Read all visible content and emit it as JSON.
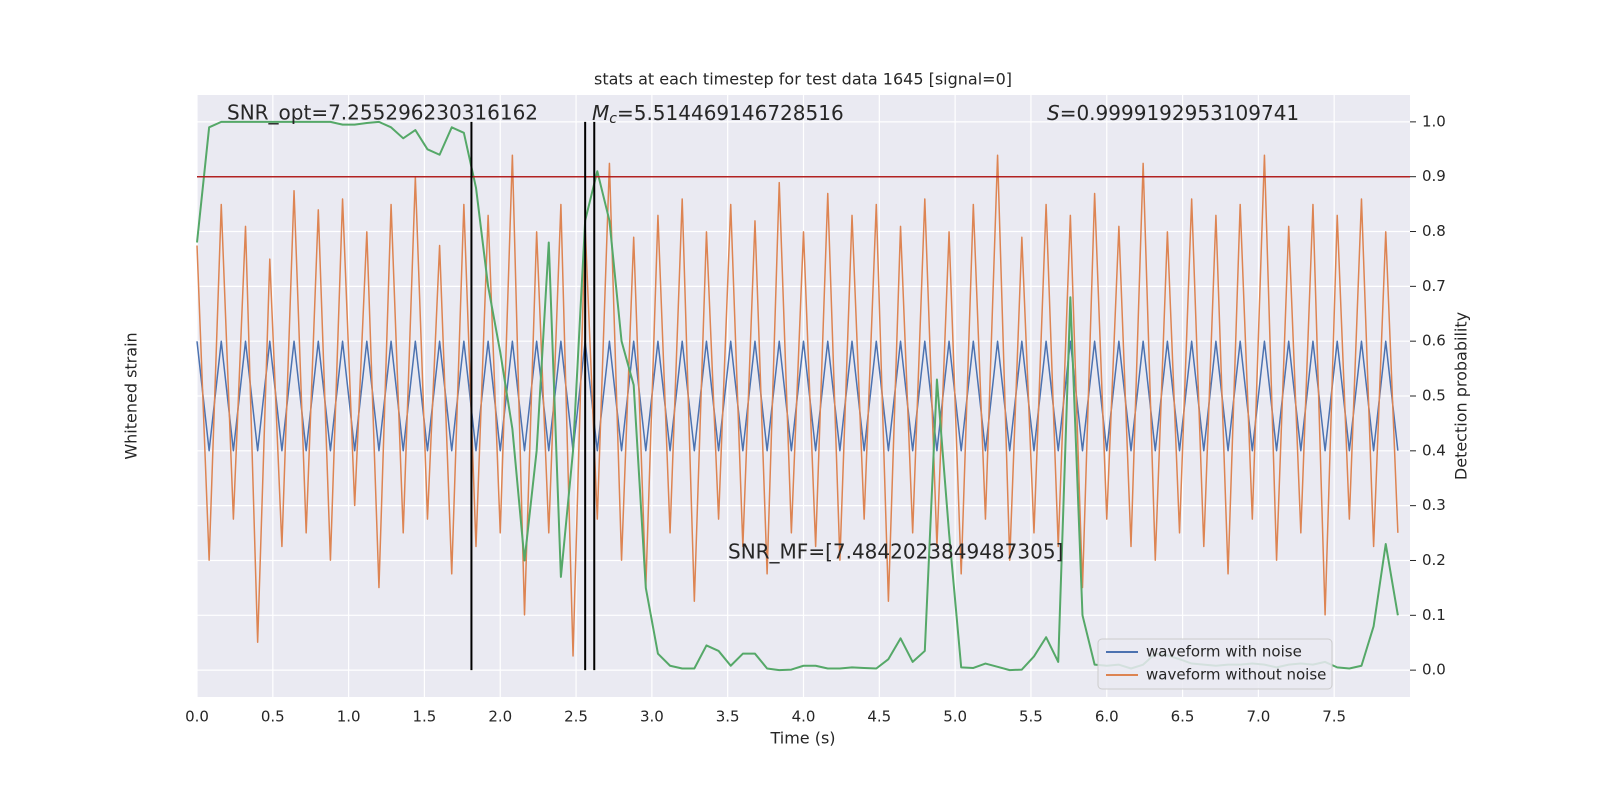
{
  "chart_data": {
    "type": "line",
    "title": "stats at each timestep for test data 1645 [signal=0]",
    "xlabel": "Time (s)",
    "ylabel": "Whitened strain",
    "y2label": "Detection probability",
    "x": [
      0,
      0.08,
      0.16,
      0.24,
      0.32,
      0.4,
      0.48,
      0.56,
      0.64,
      0.72,
      0.8,
      0.88,
      0.96,
      1.04,
      1.12,
      1.2,
      1.28,
      1.36,
      1.44,
      1.52,
      1.6,
      1.68,
      1.76,
      1.84,
      1.92,
      2,
      2.08,
      2.16,
      2.24,
      2.32,
      2.4,
      2.48,
      2.56,
      2.64,
      2.72,
      2.8,
      2.88,
      2.96,
      3.04,
      3.12,
      3.2,
      3.28,
      3.36,
      3.44,
      3.52,
      3.6,
      3.68,
      3.76,
      3.84,
      3.92,
      4,
      4.08,
      4.16,
      4.24,
      4.32,
      4.4,
      4.48,
      4.56,
      4.64,
      4.72,
      4.8,
      4.88,
      4.96,
      5.04,
      5.12,
      5.2,
      5.28,
      5.36,
      5.44,
      5.52,
      5.6,
      5.68,
      5.76,
      5.84,
      5.92,
      6,
      6.08,
      6.16,
      6.24,
      6.32,
      6.4,
      6.48,
      6.56,
      6.64,
      6.72,
      6.8,
      6.88,
      6.96,
      7.04,
      7.12,
      7.2,
      7.28,
      7.36,
      7.44,
      7.52,
      7.6,
      7.68,
      7.76,
      7.84,
      7.92
    ],
    "series": [
      {
        "name": "waveform with noise",
        "color": "#4c72b0",
        "values": [
          0.2,
          -0.2,
          0.2,
          -0.2,
          0.2,
          -0.2,
          0.2,
          -0.2,
          0.2,
          -0.2,
          0.2,
          -0.2,
          0.2,
          -0.2,
          0.2,
          -0.2,
          0.2,
          -0.2,
          0.2,
          -0.2,
          0.2,
          -0.2,
          0.2,
          -0.2,
          0.2,
          -0.2,
          0.2,
          -0.2,
          0.2,
          -0.2,
          0.2,
          -0.2,
          0.2,
          -0.2,
          0.2,
          -0.2,
          0.2,
          -0.2,
          0.2,
          -0.2,
          0.2,
          -0.2,
          0.2,
          -0.2,
          0.2,
          -0.2,
          0.2,
          -0.2,
          0.2,
          -0.2,
          0.2,
          -0.2,
          0.2,
          -0.2,
          0.2,
          -0.2,
          0.2,
          -0.2,
          0.2,
          -0.2,
          0.2,
          -0.2,
          0.2,
          -0.2,
          0.2,
          -0.2,
          0.2,
          -0.2,
          0.2,
          -0.2,
          0.2,
          -0.2,
          0.2,
          -0.2,
          0.2,
          -0.2,
          0.2,
          -0.2,
          0.2,
          -0.2,
          0.2,
          -0.2,
          0.2,
          -0.2,
          0.2,
          -0.2,
          0.2,
          -0.2,
          0.2,
          -0.2,
          0.2,
          -0.2,
          0.2,
          -0.2,
          0.2,
          -0.2,
          0.2,
          -0.2,
          0.2,
          -0.2
        ]
      },
      {
        "name": "waveform without noise",
        "color": "#dd8452",
        "values": [
          0.55,
          -0.6,
          0.7,
          -0.45,
          0.62,
          -0.9,
          0.5,
          -0.55,
          0.75,
          -0.5,
          0.68,
          -0.6,
          0.72,
          -0.4,
          0.6,
          -0.7,
          0.7,
          -0.5,
          0.8,
          -0.45,
          0.55,
          -0.65,
          0.7,
          -0.55,
          0.66,
          -0.5,
          0.88,
          -0.8,
          0.6,
          -0.5,
          0.7,
          -0.95,
          0.62,
          -0.45,
          0.85,
          -0.6,
          0.58,
          -0.7,
          0.66,
          -0.5,
          0.72,
          -0.75,
          0.6,
          -0.45,
          0.7,
          -0.55,
          0.64,
          -0.65,
          0.78,
          -0.5,
          0.6,
          -0.55,
          0.74,
          -0.6,
          0.66,
          -0.45,
          0.7,
          -0.75,
          0.62,
          -0.5,
          0.72,
          -0.55,
          0.6,
          -0.65,
          0.7,
          -0.45,
          0.88,
          -0.6,
          0.58,
          -0.5,
          0.7,
          -0.55,
          0.66,
          -0.7,
          0.74,
          -0.45,
          0.62,
          -0.55,
          0.85,
          -0.6,
          0.6,
          -0.5,
          0.72,
          -0.55,
          0.66,
          -0.65,
          0.7,
          -0.45,
          0.88,
          -0.6,
          0.62,
          -0.5,
          0.7,
          -0.8,
          0.66,
          -0.45,
          0.72,
          -0.55,
          0.6,
          -0.5
        ]
      }
    ],
    "probability": {
      "color": "#55a868",
      "axis": "y2",
      "values": [
        0.78,
        0.99,
        1.0,
        1.0,
        1.0,
        1.0,
        1.0,
        1.0,
        1.0,
        1.0,
        1.0,
        1.0,
        0.995,
        0.995,
        0.998,
        1.0,
        0.99,
        0.97,
        0.985,
        0.95,
        0.94,
        0.99,
        0.98,
        0.88,
        0.7,
        0.58,
        0.44,
        0.2,
        0.4,
        0.78,
        0.17,
        0.4,
        0.82,
        0.91,
        0.82,
        0.6,
        0.52,
        0.15,
        0.03,
        0.008,
        0.003,
        0.003,
        0.045,
        0.035,
        0.008,
        0.03,
        0.03,
        0.003,
        0,
        0.001,
        0.008,
        0.008,
        0.003,
        0.003,
        0.005,
        0.004,
        0.003,
        0.02,
        0.058,
        0.015,
        0.035,
        0.53,
        0.25,
        0.005,
        0.004,
        0.012,
        0.006,
        0,
        0.001,
        0.025,
        0.06,
        0.015,
        0.68,
        0.1,
        0.01,
        0.008,
        0.01,
        0.003,
        0.01,
        0.03,
        0.027,
        0.02,
        0.012,
        0.01,
        0.008,
        0.01,
        0.01,
        0.012,
        0.01,
        0.005,
        0.01,
        0.012,
        0.01,
        0.015,
        0.005,
        0.003,
        0.008,
        0.08,
        0.23,
        0.1
      ]
    },
    "threshold": {
      "value": 0.9,
      "color": "#b22222",
      "axis": "y2"
    },
    "vlines": {
      "values": [
        1.81,
        2.56,
        2.62
      ],
      "color": "#000000"
    },
    "annotations": {
      "snr_opt": "SNR_opt=7.255296230316162",
      "mc": {
        "symbol": "M",
        "subscript": "c",
        "text": "=5.514469146728516"
      },
      "s": {
        "symbol": "S",
        "text": "=0.9999192953109741"
      },
      "snr_mf": "SNR_MF=[7.484202384948730​5]"
    },
    "xlim": [
      0,
      8
    ],
    "ylim": [
      -1.1,
      1.1
    ],
    "y2lim": [
      -0.049,
      1.049
    ],
    "xticks": [
      {
        "value": 0,
        "label": "0.0"
      },
      0.5,
      {
        "value": 1,
        "label": "1.0"
      },
      1.5,
      {
        "value": 2,
        "label": "2.0"
      },
      2.5,
      {
        "value": 3,
        "label": "3.0"
      },
      3.5,
      {
        "value": 4,
        "label": "4.0"
      },
      4.5,
      {
        "value": 5,
        "label": "5.0"
      },
      5.5,
      {
        "value": 6,
        "label": "6.0"
      },
      6.5,
      {
        "value": 7,
        "label": "7.0"
      },
      7.5
    ],
    "y2ticks": [
      {
        "value": 0,
        "label": "0.0"
      },
      0.1,
      0.2,
      0.3,
      0.4,
      0.5,
      0.6,
      0.7,
      0.8,
      0.9,
      {
        "value": 1,
        "label": "1.0"
      }
    ],
    "grid": true,
    "legend": "lower right"
  }
}
